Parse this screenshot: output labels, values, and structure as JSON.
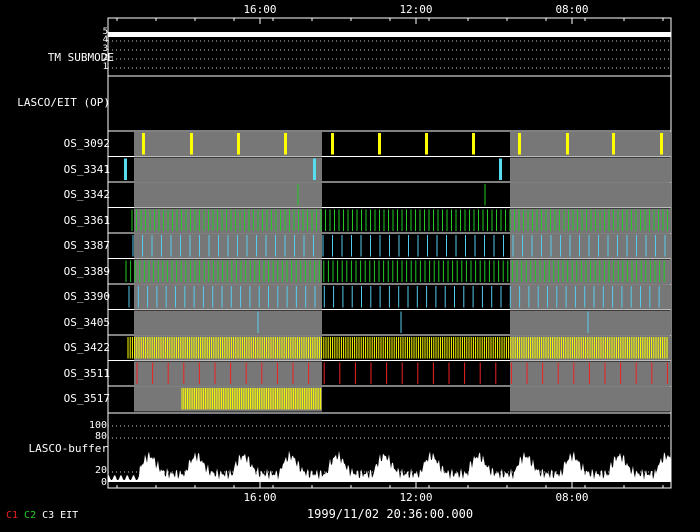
{
  "time_axis": {
    "top_ticks": [
      "16:00",
      "12:00",
      "08:00"
    ],
    "bottom_ticks": [
      "16:00",
      "12:00",
      "08:00"
    ]
  },
  "tm_submode": {
    "label": "TM SUBMODE",
    "levels": [
      "5",
      "4",
      "3",
      "2",
      "1"
    ]
  },
  "lasco_eit_label": "LASCO/EIT (OP)",
  "rows": [
    {
      "label": "OS_3092",
      "color": "#ffff00"
    },
    {
      "label": "OS_3341",
      "color": "#55ddee"
    },
    {
      "label": "OS_3342",
      "color": "#22cc22"
    },
    {
      "label": "OS_3361",
      "color": "#22cc22"
    },
    {
      "label": "OS_3387",
      "color": "#55ccee"
    },
    {
      "label": "OS_3389",
      "color": "#22cc22"
    },
    {
      "label": "OS_3390",
      "color": "#55ccee"
    },
    {
      "label": "OS_3405",
      "color": "#55ccee"
    },
    {
      "label": "OS_3422",
      "color": "#ffff00"
    },
    {
      "label": "OS_3511",
      "color": "#ee2222"
    },
    {
      "label": "OS_3517",
      "color": "#ffff00"
    }
  ],
  "buffer": {
    "label": "LASCO-buffer",
    "ticks": [
      "100",
      "80",
      "20",
      "0"
    ]
  },
  "timestamp": "1999/11/02 20:36:00.000",
  "legend": [
    {
      "text": "C1",
      "color": "#ee2222"
    },
    {
      "text": "C2",
      "color": "#22cc22"
    },
    {
      "text": "C3",
      "color": "#ffffff"
    },
    {
      "text": "EIT",
      "color": "#ffffff"
    }
  ]
}
